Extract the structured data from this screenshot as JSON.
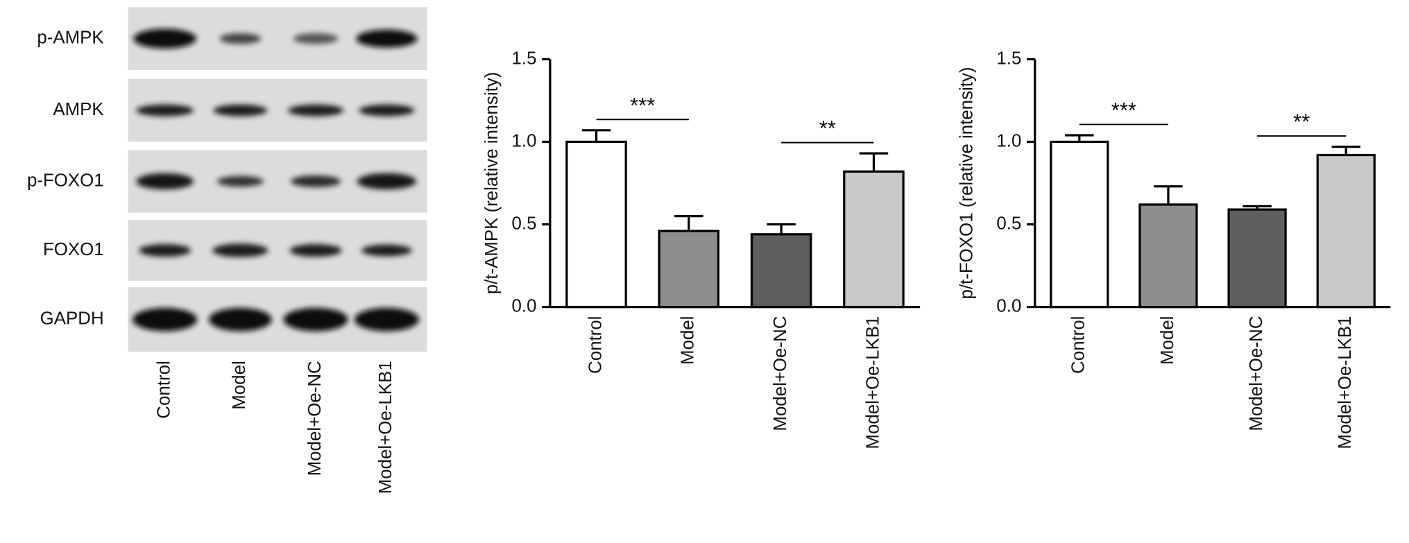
{
  "blot": {
    "rows": [
      "p-AMPK",
      "AMPK",
      "p-FOXO1",
      "FOXO1",
      "GAPDH"
    ],
    "lanes": [
      "Control",
      "Model",
      "Model+Oe-NC",
      "Model+Oe-LKB1"
    ]
  },
  "chart_data": [
    {
      "type": "bar",
      "y_label": "p/t-AMPK (relative intensity)",
      "categories": [
        "Control",
        "Model",
        "Model+Oe-NC",
        "Model+Oe-LKB1"
      ],
      "values": [
        1.0,
        0.46,
        0.44,
        0.82
      ],
      "errors": [
        0.07,
        0.09,
        0.06,
        0.11
      ],
      "colors": [
        "#ffffff",
        "#8e8e8e",
        "#5f5f5f",
        "#c9c9c9"
      ],
      "ylim": [
        0,
        1.5
      ],
      "yticks": [
        {
          "value": 0,
          "label": "0.0"
        },
        0.5,
        {
          "value": 1,
          "label": "1.0"
        },
        1.5
      ],
      "annotations": [
        {
          "text": "***",
          "between": [
            "Control",
            "Model"
          ]
        },
        {
          "text": "**",
          "between": [
            "Model+Oe-NC",
            "Model+Oe-LKB1"
          ]
        }
      ]
    },
    {
      "type": "bar",
      "y_label": "p/t-FOXO1 (relative intensity)",
      "categories": [
        "Control",
        "Model",
        "Model+Oe-NC",
        "Model+Oe-LKB1"
      ],
      "values": [
        1.0,
        0.62,
        0.59,
        0.92
      ],
      "errors": [
        0.04,
        0.11,
        0.02,
        0.05
      ],
      "colors": [
        "#ffffff",
        "#8e8e8e",
        "#5f5f5f",
        "#c9c9c9"
      ],
      "ylim": [
        0,
        1.5
      ],
      "yticks": [
        {
          "value": 0,
          "label": "0.0"
        },
        0.5,
        {
          "value": 1,
          "label": "1.0"
        },
        1.5
      ],
      "annotations": [
        {
          "text": "***",
          "between": [
            "Control",
            "Model"
          ]
        },
        {
          "text": "**",
          "between": [
            "Model+Oe-NC",
            "Model+Oe-LKB1"
          ]
        }
      ]
    }
  ]
}
